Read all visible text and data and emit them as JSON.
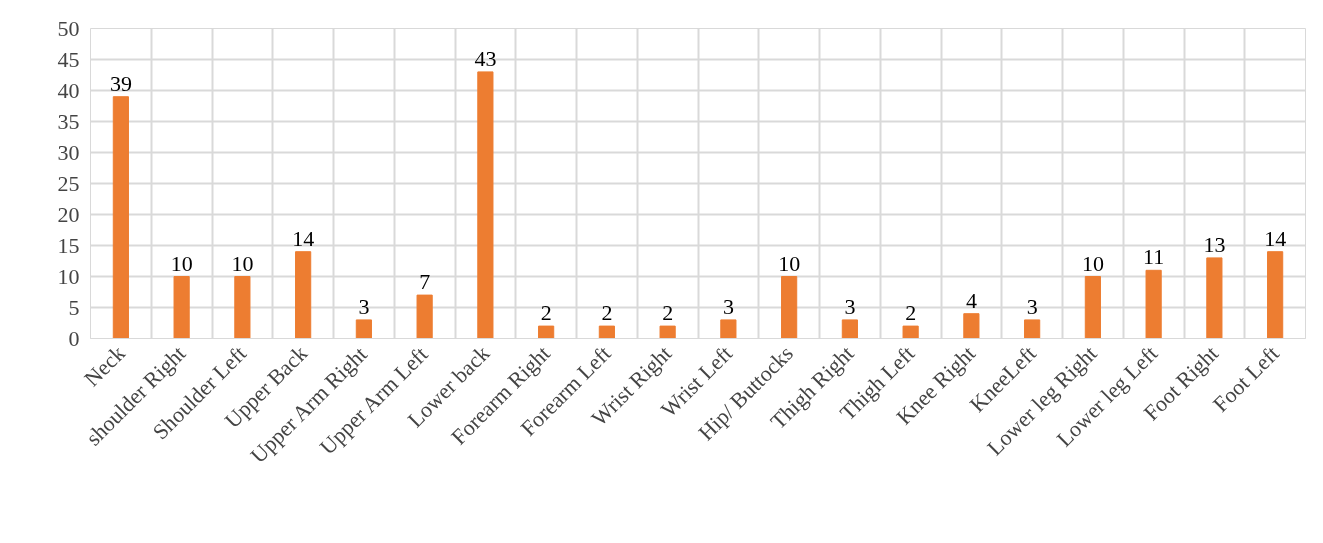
{
  "chart_data": {
    "type": "bar",
    "categories": [
      "Neck",
      "shoulder Right",
      "Shoulder Left",
      "Upper Back",
      "Upper Arm Right",
      "Upper Arm Left",
      "Lower back",
      "Forearm Right",
      "Forearm Left",
      "Wrist Right",
      "Wrist Left",
      "Hip/ Buttocks",
      "Thigh Right",
      "Thigh Left",
      "Knee Right",
      "KneeLeft",
      "Lower leg Right",
      "Lower leg Left",
      "Foot Right",
      "Foot Left"
    ],
    "values": [
      39,
      10,
      10,
      14,
      3,
      7,
      43,
      2,
      2,
      2,
      3,
      10,
      3,
      2,
      4,
      3,
      10,
      11,
      13,
      14
    ],
    "color": "#ed7d31",
    "ylim": [
      0,
      50
    ],
    "yticks": [
      0,
      5,
      10,
      15,
      20,
      25,
      30,
      35,
      40,
      45,
      50
    ],
    "grid": true,
    "data_labels": true
  }
}
